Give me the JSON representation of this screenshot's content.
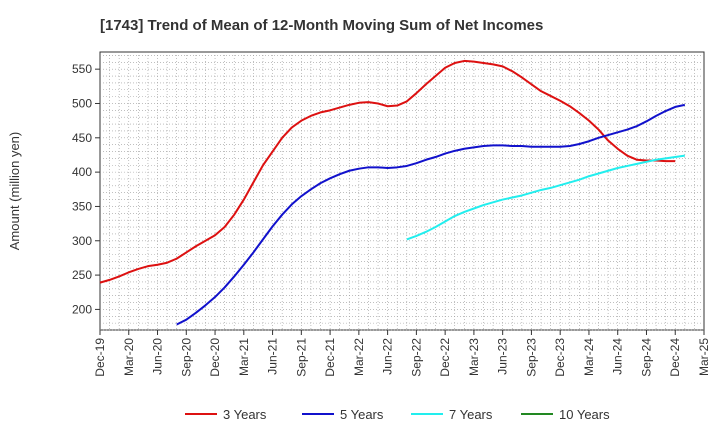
{
  "chart_data": {
    "type": "line",
    "title": "[1743]  Trend of Mean of 12-Month Moving Sum of Net Incomes",
    "ylabel": "Amount (million yen)",
    "xlabel": "",
    "ylim": [
      170,
      575
    ],
    "y_ticks": [
      200,
      250,
      300,
      350,
      400,
      450,
      500,
      550
    ],
    "x_tick_labels": [
      "Dec-19",
      "Mar-20",
      "Jun-20",
      "Sep-20",
      "Dec-20",
      "Mar-21",
      "Jun-21",
      "Sep-21",
      "Dec-21",
      "Mar-22",
      "Jun-22",
      "Sep-22",
      "Dec-22",
      "Mar-23",
      "Jun-23",
      "Sep-23",
      "Dec-23",
      "Mar-24",
      "Jun-24",
      "Sep-24",
      "Dec-24",
      "Mar-25"
    ],
    "grid": true,
    "legend_position": "bottom",
    "series": [
      {
        "name": "3 Years",
        "color": "#dd1111",
        "points": [
          [
            "Dec-19",
            239
          ],
          [
            "Jan-20",
            243
          ],
          [
            "Feb-20",
            248
          ],
          [
            "Mar-20",
            254
          ],
          [
            "Apr-20",
            259
          ],
          [
            "May-20",
            263
          ],
          [
            "Jun-20",
            265
          ],
          [
            "Jul-20",
            268
          ],
          [
            "Aug-20",
            274
          ],
          [
            "Sep-20",
            283
          ],
          [
            "Oct-20",
            292
          ],
          [
            "Nov-20",
            300
          ],
          [
            "Dec-20",
            308
          ],
          [
            "Jan-21",
            320
          ],
          [
            "Feb-21",
            338
          ],
          [
            "Mar-21",
            360
          ],
          [
            "Apr-21",
            385
          ],
          [
            "May-21",
            410
          ],
          [
            "Jun-21",
            430
          ],
          [
            "Jul-21",
            450
          ],
          [
            "Aug-21",
            465
          ],
          [
            "Sep-21",
            475
          ],
          [
            "Oct-21",
            482
          ],
          [
            "Nov-21",
            487
          ],
          [
            "Dec-21",
            490
          ],
          [
            "Jan-22",
            494
          ],
          [
            "Feb-22",
            498
          ],
          [
            "Mar-22",
            501
          ],
          [
            "Apr-22",
            502
          ],
          [
            "May-22",
            500
          ],
          [
            "Jun-22",
            496
          ],
          [
            "Jul-22",
            497
          ],
          [
            "Aug-22",
            503
          ],
          [
            "Sep-22",
            515
          ],
          [
            "Oct-22",
            528
          ],
          [
            "Nov-22",
            540
          ],
          [
            "Dec-22",
            552
          ],
          [
            "Jan-23",
            559
          ],
          [
            "Feb-23",
            562
          ],
          [
            "Mar-23",
            561
          ],
          [
            "Apr-23",
            559
          ],
          [
            "May-23",
            557
          ],
          [
            "Jun-23",
            554
          ],
          [
            "Jul-23",
            547
          ],
          [
            "Aug-23",
            538
          ],
          [
            "Sep-23",
            528
          ],
          [
            "Oct-23",
            518
          ],
          [
            "Nov-23",
            511
          ],
          [
            "Dec-23",
            504
          ],
          [
            "Jan-24",
            496
          ],
          [
            "Feb-24",
            486
          ],
          [
            "Mar-24",
            475
          ],
          [
            "Apr-24",
            462
          ],
          [
            "May-24",
            446
          ],
          [
            "Jun-24",
            434
          ],
          [
            "Jul-24",
            424
          ],
          [
            "Aug-24",
            418
          ],
          [
            "Sep-24",
            417
          ],
          [
            "Oct-24",
            417
          ],
          [
            "Nov-24",
            416
          ],
          [
            "Dec-24",
            416
          ]
        ]
      },
      {
        "name": "5 Years",
        "color": "#1111cc",
        "points": [
          [
            "Aug-20",
            178
          ],
          [
            "Sep-20",
            185
          ],
          [
            "Oct-20",
            195
          ],
          [
            "Nov-20",
            206
          ],
          [
            "Dec-20",
            218
          ],
          [
            "Jan-21",
            232
          ],
          [
            "Feb-21",
            248
          ],
          [
            "Mar-21",
            265
          ],
          [
            "Apr-21",
            283
          ],
          [
            "May-21",
            302
          ],
          [
            "Jun-21",
            321
          ],
          [
            "Jul-21",
            338
          ],
          [
            "Aug-21",
            353
          ],
          [
            "Sep-21",
            365
          ],
          [
            "Oct-21",
            375
          ],
          [
            "Nov-21",
            384
          ],
          [
            "Dec-21",
            391
          ],
          [
            "Jan-22",
            397
          ],
          [
            "Feb-22",
            402
          ],
          [
            "Mar-22",
            405
          ],
          [
            "Apr-22",
            407
          ],
          [
            "May-22",
            407
          ],
          [
            "Jun-22",
            406
          ],
          [
            "Jul-22",
            407
          ],
          [
            "Aug-22",
            409
          ],
          [
            "Sep-22",
            413
          ],
          [
            "Oct-22",
            418
          ],
          [
            "Nov-22",
            422
          ],
          [
            "Dec-22",
            427
          ],
          [
            "Jan-23",
            431
          ],
          [
            "Feb-23",
            434
          ],
          [
            "Mar-23",
            436
          ],
          [
            "Apr-23",
            438
          ],
          [
            "May-23",
            439
          ],
          [
            "Jun-23",
            439
          ],
          [
            "Jul-23",
            438
          ],
          [
            "Aug-23",
            438
          ],
          [
            "Sep-23",
            437
          ],
          [
            "Oct-23",
            437
          ],
          [
            "Nov-23",
            437
          ],
          [
            "Dec-23",
            437
          ],
          [
            "Jan-24",
            438
          ],
          [
            "Feb-24",
            441
          ],
          [
            "Mar-24",
            445
          ],
          [
            "Apr-24",
            450
          ],
          [
            "May-24",
            454
          ],
          [
            "Jun-24",
            458
          ],
          [
            "Jul-24",
            462
          ],
          [
            "Aug-24",
            467
          ],
          [
            "Sep-24",
            474
          ],
          [
            "Oct-24",
            482
          ],
          [
            "Nov-24",
            489
          ],
          [
            "Dec-24",
            495
          ],
          [
            "Jan-25",
            498
          ]
        ]
      },
      {
        "name": "7 Years",
        "color": "#22eeee",
        "points": [
          [
            "Aug-22",
            302
          ],
          [
            "Sep-22",
            307
          ],
          [
            "Oct-22",
            313
          ],
          [
            "Nov-22",
            320
          ],
          [
            "Dec-22",
            328
          ],
          [
            "Jan-23",
            336
          ],
          [
            "Feb-23",
            342
          ],
          [
            "Mar-23",
            347
          ],
          [
            "Apr-23",
            352
          ],
          [
            "May-23",
            356
          ],
          [
            "Jun-23",
            360
          ],
          [
            "Jul-23",
            363
          ],
          [
            "Aug-23",
            366
          ],
          [
            "Sep-23",
            370
          ],
          [
            "Oct-23",
            374
          ],
          [
            "Nov-23",
            377
          ],
          [
            "Dec-23",
            381
          ],
          [
            "Jan-24",
            385
          ],
          [
            "Feb-24",
            389
          ],
          [
            "Mar-24",
            394
          ],
          [
            "Apr-24",
            398
          ],
          [
            "May-24",
            402
          ],
          [
            "Jun-24",
            406
          ],
          [
            "Jul-24",
            409
          ],
          [
            "Aug-24",
            412
          ],
          [
            "Sep-24",
            415
          ],
          [
            "Oct-24",
            418
          ],
          [
            "Nov-24",
            420
          ],
          [
            "Dec-24",
            422
          ],
          [
            "Jan-25",
            424
          ]
        ]
      },
      {
        "name": "10 Years",
        "color": "#228822",
        "points": []
      }
    ]
  }
}
